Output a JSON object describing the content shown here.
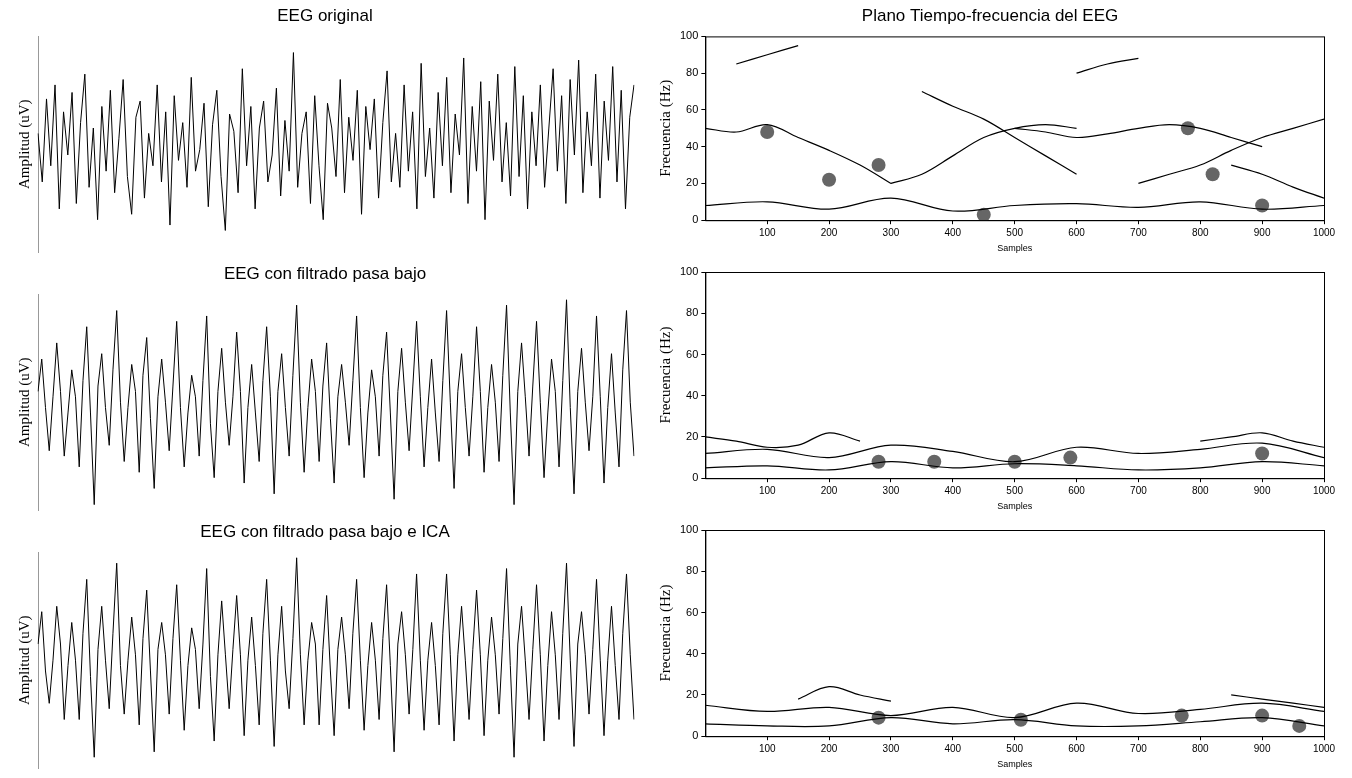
{
  "chart_data": [
    {
      "type": "line",
      "title": "EEG original",
      "y_label": "Amplitud (uV)",
      "tick_labels": false,
      "grid": false,
      "color": "#000000",
      "ylim": [
        -100,
        100
      ],
      "values": [
        10,
        -35,
        42,
        -20,
        55,
        -60,
        30,
        -10,
        48,
        -55,
        20,
        65,
        -40,
        15,
        -70,
        35,
        -25,
        50,
        -45,
        5,
        60,
        -30,
        -65,
        25,
        40,
        -50,
        10,
        -20,
        55,
        -35,
        30,
        -75,
        45,
        -15,
        20,
        -40,
        62,
        -25,
        -5,
        38,
        -58,
        18,
        50,
        -30,
        -80,
        28,
        12,
        -45,
        70,
        -20,
        35,
        -60,
        15,
        40,
        -35,
        -10,
        52,
        -48,
        22,
        -25,
        85,
        -40,
        10,
        30,
        -55,
        45,
        -20,
        -70,
        38,
        15,
        -30,
        60,
        -45,
        25,
        -15,
        50,
        -65,
        35,
        -5,
        42,
        -50,
        20,
        68,
        -35,
        10,
        -40,
        55,
        -25,
        30,
        -60,
        75,
        -30,
        15,
        -50,
        48,
        -20,
        62,
        -45,
        28,
        -10,
        80,
        -55,
        35,
        -25,
        58,
        -70,
        40,
        -15,
        65,
        -35,
        20,
        -48,
        72,
        -30,
        45,
        -60,
        30,
        -20,
        55,
        -40,
        15,
        70,
        -25,
        45,
        -55,
        60,
        -10,
        78,
        -45,
        30,
        -20,
        65,
        -50,
        40,
        -15,
        72,
        -35,
        50,
        -60,
        25,
        55
      ]
    },
    {
      "type": "line",
      "title": "Plano Tiempo-frecuencia del EEG",
      "x_label": "Samples",
      "y_label": "Frecuencia (Hz)",
      "grid": false,
      "xlim": [
        0,
        1000
      ],
      "xticks": [
        100,
        200,
        300,
        400,
        500,
        600,
        700,
        800,
        900,
        1000
      ],
      "ylim": [
        0,
        100
      ],
      "yticks": [
        0,
        20,
        40,
        60,
        80,
        100
      ],
      "series": [
        {
          "type": "line",
          "color": "#000000",
          "x": [
            0,
            50,
            100,
            150,
            200,
            250,
            300
          ],
          "values": [
            50,
            48,
            52,
            45,
            38,
            30,
            20
          ]
        },
        {
          "type": "line",
          "color": "#000000",
          "x": [
            300,
            350,
            400,
            450,
            500,
            550,
            600
          ],
          "values": [
            20,
            25,
            35,
            45,
            50,
            52,
            50
          ]
        },
        {
          "type": "line",
          "color": "#000000",
          "x": [
            500,
            550,
            600,
            650,
            700,
            750,
            800,
            850,
            900
          ],
          "values": [
            50,
            48,
            45,
            47,
            50,
            52,
            50,
            45,
            40
          ]
        },
        {
          "type": "line",
          "color": "#000000",
          "x": [
            0,
            100,
            200,
            300,
            400,
            500,
            600,
            700,
            800,
            900,
            1000
          ],
          "values": [
            8,
            10,
            6,
            12,
            5,
            8,
            9,
            7,
            10,
            6,
            8
          ]
        },
        {
          "type": "line",
          "color": "#000000",
          "x": [
            350,
            400,
            450,
            500,
            550,
            600
          ],
          "values": [
            70,
            62,
            55,
            45,
            35,
            25
          ]
        },
        {
          "type": "line",
          "color": "#000000",
          "x": [
            700,
            750,
            800,
            850,
            900,
            950,
            1000
          ],
          "values": [
            20,
            25,
            30,
            38,
            45,
            50,
            55
          ]
        },
        {
          "type": "line",
          "color": "#000000",
          "x": [
            50,
            100,
            150
          ],
          "values": [
            85,
            90,
            95
          ]
        },
        {
          "type": "line",
          "color": "#000000",
          "x": [
            600,
            650,
            700
          ],
          "values": [
            80,
            85,
            88
          ]
        },
        {
          "type": "line",
          "color": "#000000",
          "x": [
            850,
            900,
            950,
            1000
          ],
          "values": [
            30,
            25,
            18,
            12
          ]
        },
        {
          "type": "scatter",
          "marker": "circle",
          "color": "#666666",
          "x": [
            100,
            200,
            280,
            450,
            780,
            820,
            900
          ],
          "values": [
            48,
            22,
            30,
            3,
            50,
            25,
            8
          ]
        }
      ]
    },
    {
      "type": "line",
      "title": "EEG con filtrado pasa bajo",
      "y_label": "Amplitud (uV)",
      "tick_labels": false,
      "grid": false,
      "color": "#000000",
      "ylim": [
        -100,
        100
      ],
      "values": [
        10,
        40,
        -5,
        -45,
        5,
        55,
        10,
        -50,
        -10,
        30,
        5,
        -60,
        20,
        70,
        -10,
        -95,
        15,
        45,
        -5,
        -40,
        30,
        85,
        0,
        -55,
        -5,
        35,
        10,
        -65,
        25,
        60,
        -15,
        -80,
        5,
        40,
        0,
        -45,
        15,
        75,
        -5,
        -60,
        -10,
        25,
        5,
        -50,
        20,
        80,
        -20,
        -70,
        10,
        50,
        0,
        -40,
        5,
        65,
        10,
        -75,
        -5,
        35,
        -10,
        -55,
        20,
        70,
        5,
        -85,
        10,
        45,
        -5,
        -50,
        25,
        90,
        0,
        -65,
        -5,
        40,
        10,
        -55,
        15,
        55,
        -15,
        -75,
        5,
        35,
        0,
        -40,
        20,
        80,
        -5,
        -70,
        -10,
        30,
        5,
        -50,
        25,
        65,
        -10,
        -90,
        10,
        50,
        0,
        -45,
        15,
        75,
        5,
        -60,
        -5,
        40,
        -10,
        -55,
        20,
        85,
        0,
        -80,
        10,
        45,
        -5,
        -50,
        5,
        70,
        10,
        -65,
        -5,
        35,
        0,
        -55,
        25,
        90,
        -10,
        -95,
        10,
        55,
        5,
        -50,
        15,
        75,
        0,
        -70,
        -10,
        40,
        10,
        -60,
        20,
        95,
        -5,
        -85,
        10,
        50,
        0,
        -45,
        5,
        80,
        5,
        -75,
        -5,
        45,
        -10,
        -60,
        30,
        85,
        0,
        -50
      ]
    },
    {
      "type": "line",
      "x_label": "Samples",
      "y_label": "Frecuencia (Hz)",
      "grid": false,
      "xlim": [
        0,
        1000
      ],
      "xticks": [
        100,
        200,
        300,
        400,
        500,
        600,
        700,
        800,
        900,
        1000
      ],
      "ylim": [
        0,
        100
      ],
      "yticks": [
        0,
        20,
        40,
        60,
        80,
        100
      ],
      "series": [
        {
          "type": "line",
          "color": "#000000",
          "x": [
            0,
            100,
            200,
            300,
            400,
            500,
            600,
            700,
            800,
            900,
            1000
          ],
          "values": [
            12,
            14,
            10,
            16,
            13,
            8,
            15,
            12,
            14,
            17,
            10
          ]
        },
        {
          "type": "line",
          "color": "#000000",
          "x": [
            0,
            100,
            200,
            300,
            400,
            500,
            600,
            700,
            800,
            900,
            1000
          ],
          "values": [
            5,
            6,
            4,
            8,
            5,
            7,
            6,
            4,
            5,
            8,
            6
          ]
        },
        {
          "type": "line",
          "color": "#000000",
          "x": [
            0,
            50,
            100,
            150,
            200,
            250
          ],
          "values": [
            20,
            18,
            15,
            16,
            22,
            18
          ]
        },
        {
          "type": "line",
          "color": "#000000",
          "x": [
            800,
            850,
            900,
            950,
            1000
          ],
          "values": [
            18,
            20,
            22,
            18,
            15
          ]
        },
        {
          "type": "scatter",
          "marker": "circle",
          "color": "#666666",
          "x": [
            280,
            370,
            500,
            590,
            900
          ],
          "values": [
            8,
            8,
            8,
            10,
            12
          ]
        }
      ]
    },
    {
      "type": "line",
      "title": "EEG con filtrado pasa bajo e ICA",
      "y_label": "Amplitud (uV)",
      "tick_labels": false,
      "grid": false,
      "color": "#000000",
      "ylim": [
        -100,
        100
      ],
      "values": [
        15,
        45,
        -10,
        -40,
        0,
        50,
        15,
        -55,
        -5,
        35,
        0,
        -55,
        25,
        75,
        -15,
        -90,
        10,
        50,
        0,
        -45,
        25,
        90,
        -5,
        -50,
        0,
        40,
        5,
        -60,
        20,
        65,
        -10,
        -85,
        10,
        35,
        5,
        -50,
        20,
        70,
        0,
        -65,
        -5,
        30,
        10,
        -45,
        15,
        85,
        -15,
        -75,
        5,
        55,
        5,
        -45,
        10,
        60,
        5,
        -70,
        0,
        40,
        -5,
        -60,
        25,
        75,
        0,
        -80,
        5,
        50,
        -10,
        -45,
        20,
        95,
        5,
        -60,
        0,
        35,
        15,
        -60,
        10,
        60,
        -10,
        -70,
        10,
        40,
        5,
        -45,
        25,
        75,
        0,
        -65,
        -5,
        35,
        0,
        -55,
        20,
        70,
        -5,
        -85,
        15,
        45,
        5,
        -50,
        10,
        80,
        0,
        -65,
        0,
        35,
        -5,
        -60,
        25,
        80,
        5,
        -75,
        5,
        50,
        0,
        -55,
        10,
        65,
        5,
        -70,
        0,
        40,
        5,
        -50,
        20,
        85,
        -5,
        -90,
        15,
        50,
        0,
        -55,
        10,
        70,
        5,
        -75,
        -5,
        45,
        5,
        -55,
        25,
        90,
        0,
        -80,
        15,
        45,
        5,
        -50,
        10,
        75,
        0,
        -70,
        0,
        50,
        -5,
        -55,
        25,
        80,
        5,
        -55
      ]
    },
    {
      "type": "line",
      "x_label": "Samples",
      "y_label": "Frecuencia (Hz)",
      "grid": false,
      "xlim": [
        0,
        1000
      ],
      "xticks": [
        100,
        200,
        300,
        400,
        500,
        600,
        700,
        800,
        900,
        1000
      ],
      "ylim": [
        0,
        100
      ],
      "yticks": [
        0,
        20,
        40,
        60,
        80,
        100
      ],
      "series": [
        {
          "type": "line",
          "color": "#000000",
          "x": [
            0,
            100,
            200,
            300,
            400,
            500,
            600,
            700,
            800,
            900,
            1000
          ],
          "values": [
            15,
            12,
            14,
            10,
            14,
            9,
            16,
            11,
            13,
            16,
            12
          ]
        },
        {
          "type": "line",
          "color": "#000000",
          "x": [
            0,
            100,
            200,
            300,
            400,
            500,
            600,
            700,
            800,
            900,
            1000
          ],
          "values": [
            6,
            5,
            5,
            9,
            6,
            8,
            5,
            5,
            7,
            9,
            5
          ]
        },
        {
          "type": "line",
          "color": "#000000",
          "x": [
            150,
            200,
            250,
            300
          ],
          "values": [
            18,
            24,
            20,
            17
          ]
        },
        {
          "type": "line",
          "color": "#000000",
          "x": [
            850,
            900,
            950,
            1000
          ],
          "values": [
            20,
            18,
            16,
            14
          ]
        },
        {
          "type": "scatter",
          "marker": "circle",
          "color": "#666666",
          "x": [
            280,
            510,
            770,
            900,
            960
          ],
          "values": [
            9,
            8,
            10,
            10,
            5
          ]
        }
      ]
    }
  ]
}
